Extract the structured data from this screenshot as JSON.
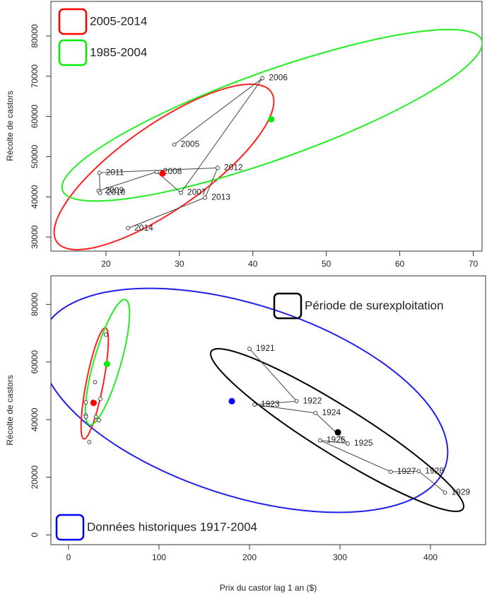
{
  "chart_data": [
    {
      "type": "scatter",
      "ylabel": "Récolte de castors",
      "xlim": [
        12.5,
        71.2
      ],
      "ylim": [
        26500,
        88600
      ],
      "xticks": [
        20,
        30,
        40,
        50,
        60,
        70
      ],
      "yticks": [
        30000,
        40000,
        50000,
        60000,
        70000,
        80000
      ],
      "points": {
        "labels": [
          "2005",
          "2006",
          "2007",
          "2008",
          "2009",
          "2010",
          "2011",
          "2012",
          "2013",
          "2014"
        ],
        "x": [
          29.3,
          41.3,
          30.2,
          26.9,
          19.0,
          19.2,
          19.1,
          35.2,
          33.5,
          23.0
        ],
        "y": [
          53000,
          69500,
          41000,
          46200,
          41500,
          41000,
          46000,
          47200,
          39800,
          32200
        ]
      },
      "series": [
        {
          "name": "2005-2014",
          "color": "#ff0000",
          "x": 27.7,
          "y": 45800
        },
        {
          "name": "1985-2004",
          "color": "#00ee00",
          "x": 42.5,
          "y": 59300
        }
      ]
    },
    {
      "type": "scatter",
      "ylabel": "Récolte de castors",
      "xlabel": "Prix du castor lag 1 an ($)",
      "xlim": [
        -19.5,
        460.9
      ],
      "ylim": [
        -3400,
        89900
      ],
      "xticks": [
        0,
        100,
        200,
        300,
        400
      ],
      "yticks": [
        0,
        20000,
        40000,
        60000,
        80000
      ],
      "points": {
        "labels": [
          "1921",
          "1922",
          "1923",
          "1924",
          "1925",
          "1926",
          "1927",
          "1928",
          "1929"
        ],
        "x": [
          200,
          252,
          205.5,
          273,
          308.5,
          278,
          356,
          387,
          416
        ],
        "y": [
          64600,
          46400,
          45200,
          42300,
          31700,
          32800,
          21900,
          22100,
          14700
        ]
      },
      "series": [
        {
          "name": "Période de surexploitation",
          "color": "#000000",
          "x": 297.7,
          "y": 35600
        },
        {
          "name": "Données historiques 1917-2004",
          "color": "#0000ff",
          "x": 180.5,
          "y": 46400
        }
      ]
    }
  ]
}
